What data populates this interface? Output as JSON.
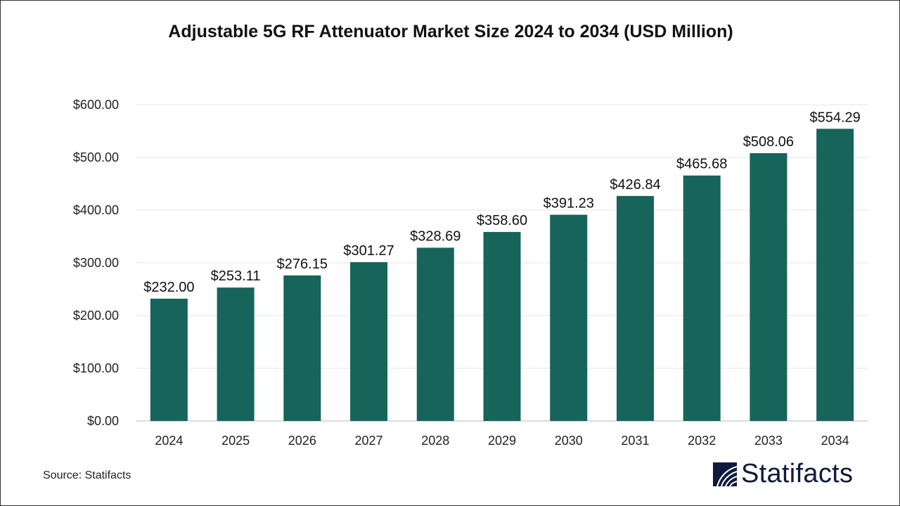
{
  "chart_data": {
    "type": "bar",
    "title": "Adjustable 5G RF Attenuator Market Size 2024 to 2034 (USD Million)",
    "categories": [
      "2024",
      "2025",
      "2026",
      "2027",
      "2028",
      "2029",
      "2030",
      "2031",
      "2032",
      "2033",
      "2034"
    ],
    "values": [
      232.0,
      253.11,
      276.15,
      301.27,
      328.69,
      358.6,
      391.23,
      426.84,
      465.68,
      508.06,
      554.29
    ],
    "data_labels": [
      "$232.00",
      "$253.11",
      "$276.15",
      "$301.27",
      "$328.69",
      "$358.60",
      "$391.23",
      "$426.84",
      "$465.68",
      "$508.06",
      "$554.29"
    ],
    "yticks": [
      0,
      100,
      200,
      300,
      400,
      500,
      600
    ],
    "ytick_labels": [
      "$0.00",
      "$100.00",
      "$200.00",
      "$300.00",
      "$400.00",
      "$500.00",
      "$600.00"
    ],
    "ylim": [
      0,
      600
    ],
    "xlabel": "",
    "ylabel": "",
    "grid": true,
    "bar_color": "#17645a"
  },
  "source": "Source: Statifacts",
  "logo": {
    "text": "Statifacts",
    "color": "#0f1a3c"
  }
}
